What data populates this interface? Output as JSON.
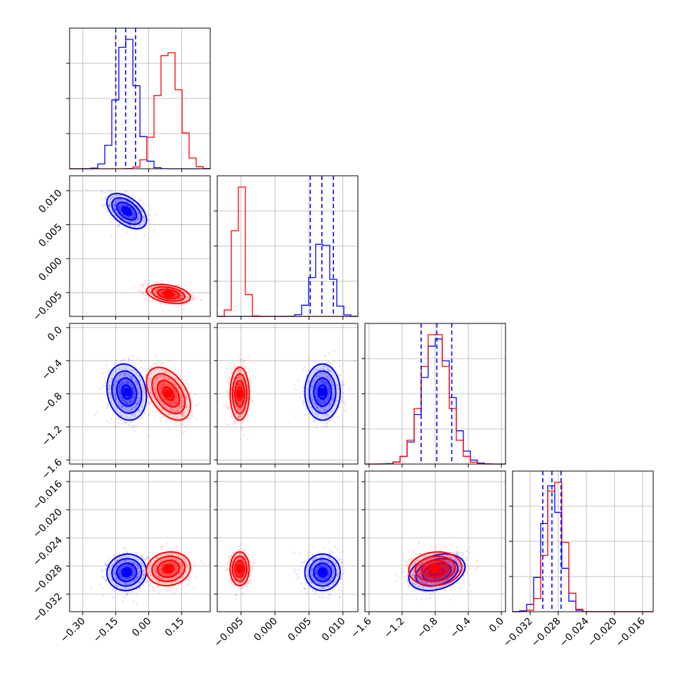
{
  "chart_data": {
    "type": "scatter",
    "subtype": "corner_plot",
    "colors": {
      "blue": "#0000ff",
      "red": "#ff0000"
    },
    "parameters": 4,
    "series": [
      {
        "color": "#0000ff",
        "means": [
          -0.1,
          0.007,
          -0.78,
          -0.0289
        ],
        "sigmas": [
          0.045,
          0.0013,
          0.17,
          0.0013
        ],
        "quantiles": [
          [
            -0.15,
            -0.105,
            -0.06
          ],
          [
            0.0052,
            0.0069,
            0.0086
          ],
          [
            -0.97,
            -0.78,
            -0.6
          ],
          [
            -0.0302,
            -0.0289,
            -0.0276
          ]
        ]
      },
      {
        "color": "#ff0000",
        "means": [
          0.09,
          -0.0052,
          -0.8,
          -0.0284
        ],
        "sigmas": [
          0.05,
          0.0007,
          0.16,
          0.0012
        ],
        "quantiles": [
          [
            0.04,
            0.09,
            0.14
          ],
          [
            -0.0059,
            -0.0052,
            -0.0045
          ],
          [
            -0.96,
            -0.8,
            -0.64
          ],
          [
            -0.0296,
            -0.0284,
            -0.0272
          ]
        ]
      }
    ],
    "axes": [
      {
        "range": [
          -0.36,
          0.28
        ],
        "ticks": [
          -0.3,
          -0.15,
          0.0,
          0.15
        ],
        "tick_labels": [
          "−0.30",
          "−0.15",
          "0.00",
          "0.15"
        ]
      },
      {
        "range": [
          -0.0085,
          0.0122
        ],
        "ticks": [
          -0.005,
          0.0,
          0.005,
          0.01
        ],
        "tick_labels": [
          "−0.005",
          "0.000",
          "0.005",
          "0.010"
        ]
      },
      {
        "range": [
          -1.65,
          0.05
        ],
        "ticks": [
          -1.6,
          -1.2,
          -0.8,
          -0.4,
          0.0
        ],
        "tick_labels": [
          "−1.6",
          "−1.2",
          "−0.8",
          "−0.4",
          "0.0"
        ]
      },
      {
        "range": [
          -0.0345,
          -0.0145
        ],
        "ticks": [
          -0.032,
          -0.028,
          -0.024,
          -0.02,
          -0.016
        ],
        "tick_labels": [
          "−0.032",
          "−0.028",
          "−0.024",
          "−0.020",
          "−0.016"
        ]
      }
    ],
    "grid": true,
    "legend": "none"
  }
}
